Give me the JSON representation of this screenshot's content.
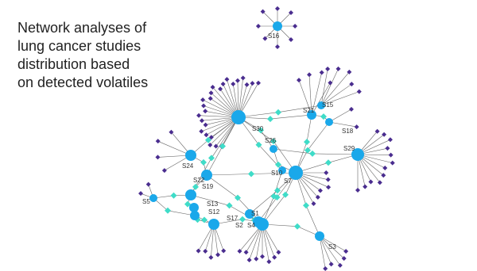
{
  "title": [
    "Network analyses of",
    "lung cancer studies",
    "distribution based",
    "on detected volatiles"
  ],
  "nodes": [
    {
      "label": "S16"
    },
    {
      "label": "S30"
    },
    {
      "label": "S21"
    },
    {
      "label": "S15"
    },
    {
      "label": "S18"
    },
    {
      "label": "S26"
    },
    {
      "label": "S29"
    },
    {
      "label": "S24"
    },
    {
      "label": "S10"
    },
    {
      "label": "S7"
    },
    {
      "label": "S22"
    },
    {
      "label": "S19"
    },
    {
      "label": "S5"
    },
    {
      "label": "S13"
    },
    {
      "label": "S12"
    },
    {
      "label": "S17"
    },
    {
      "label": "S1"
    },
    {
      "label": "S2"
    },
    {
      "label": "S4"
    },
    {
      "label": "S3"
    }
  ]
}
